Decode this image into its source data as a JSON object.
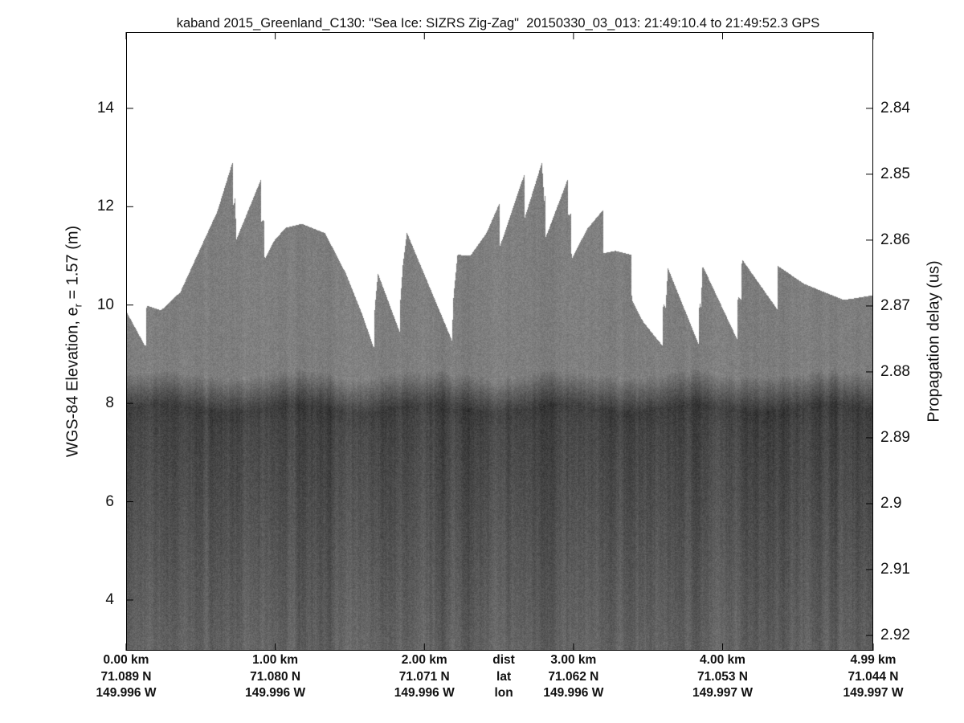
{
  "chart_data": {
    "type": "heatmap",
    "title": "kaband 2015_Greenland_C130: \"Sea Ice: SIZRS Zig-Zag\"  20150330_03_013: 21:49:10.4 to 21:49:52.3 GPS",
    "ylabel": {
      "main": "WGS-84 Elevation, e",
      "sub": "r",
      "rest": " = 1.57 (m)"
    },
    "y2label": "Propagation delay (us)",
    "xlim_km": [
      0,
      5.01
    ],
    "ylim": [
      2.97,
      15.55
    ],
    "y_ticks": [
      4,
      6,
      8,
      10,
      12,
      14
    ],
    "y2_ticks": [
      "2.84",
      "2.85",
      "2.86",
      "2.87",
      "2.88",
      "2.89",
      "2.9",
      "2.91",
      "2.92"
    ],
    "y2_mapping": {
      "delay_at_14m": 2.84,
      "m_per_0.01us": 1.34
    },
    "x_ticks_km": [
      0,
      1,
      2,
      3,
      4,
      5.01
    ],
    "x_tick_labels": {
      "dist": [
        "0.00 km",
        "1.00 km",
        "2.00 km",
        "3.00 km",
        "4.00 km",
        "4.99 km"
      ],
      "lat": [
        "71.089 N",
        "71.080 N",
        "71.071 N",
        "71.062 N",
        "71.053 N",
        "71.044 N"
      ],
      "lon": [
        "149.996 W",
        "149.996 W",
        "149.996 W",
        "149.996 W",
        "149.997 W",
        "149.997 W"
      ]
    },
    "row_labels": {
      "dist": "dist",
      "lat": "lat",
      "lon": "lon"
    },
    "row_labels_x_km": 2.5,
    "colormap": "gray",
    "surface_profile_km_m": [
      [
        0,
        9.87
      ],
      [
        0.129,
        9.15
      ],
      [
        0.135,
        10.0
      ],
      [
        0.232,
        9.9
      ],
      [
        0.361,
        10.27
      ],
      [
        0.609,
        11.91
      ],
      [
        0.711,
        12.91
      ],
      [
        0.717,
        11.96
      ],
      [
        0.727,
        12.2
      ],
      [
        0.738,
        11.35
      ],
      [
        0.9,
        12.55
      ],
      [
        0.905,
        11.71
      ],
      [
        0.921,
        11.75
      ],
      [
        0.927,
        10.93
      ],
      [
        0.986,
        11.3
      ],
      [
        1.067,
        11.58
      ],
      [
        1.175,
        11.66
      ],
      [
        1.331,
        11.47
      ],
      [
        1.471,
        10.65
      ],
      [
        1.579,
        9.83
      ],
      [
        1.659,
        9.13
      ],
      [
        1.665,
        9.96
      ],
      [
        1.686,
        10.65
      ],
      [
        1.832,
        9.46
      ],
      [
        1.837,
        10.11
      ],
      [
        1.853,
        10.81
      ],
      [
        1.88,
        11.48
      ],
      [
        2.182,
        9.29
      ],
      [
        2.193,
        10.19
      ],
      [
        2.22,
        11.03
      ],
      [
        2.306,
        11.01
      ],
      [
        2.414,
        11.47
      ],
      [
        2.5,
        12.07
      ],
      [
        2.501,
        11.17
      ],
      [
        2.667,
        12.66
      ],
      [
        2.672,
        11.79
      ],
      [
        2.786,
        12.91
      ],
      [
        2.802,
        12.09
      ],
      [
        2.807,
        12.24
      ],
      [
        2.812,
        11.39
      ],
      [
        2.958,
        12.56
      ],
      [
        2.963,
        11.83
      ],
      [
        2.98,
        11.86
      ],
      [
        2.985,
        10.94
      ],
      [
        3.088,
        11.55
      ],
      [
        3.195,
        11.94
      ],
      [
        3.2,
        11.06
      ],
      [
        3.276,
        11.11
      ],
      [
        3.384,
        11.03
      ],
      [
        3.389,
        10.11
      ],
      [
        3.464,
        9.67
      ],
      [
        3.594,
        9.18
      ],
      [
        3.599,
        10.05
      ],
      [
        3.615,
        9.96
      ],
      [
        3.631,
        10.76
      ],
      [
        3.836,
        9.21
      ],
      [
        3.842,
        10.11
      ],
      [
        3.852,
        9.96
      ],
      [
        3.863,
        10.81
      ],
      [
        4.095,
        9.31
      ],
      [
        4.1,
        10.19
      ],
      [
        4.122,
        10.11
      ],
      [
        4.127,
        10.94
      ],
      [
        4.364,
        9.92
      ],
      [
        4.365,
        10.81
      ],
      [
        4.542,
        10.44
      ],
      [
        4.811,
        10.11
      ],
      [
        5.011,
        10.21
      ]
    ],
    "bright_layer_elevation_m": 7.9,
    "grid": false
  }
}
